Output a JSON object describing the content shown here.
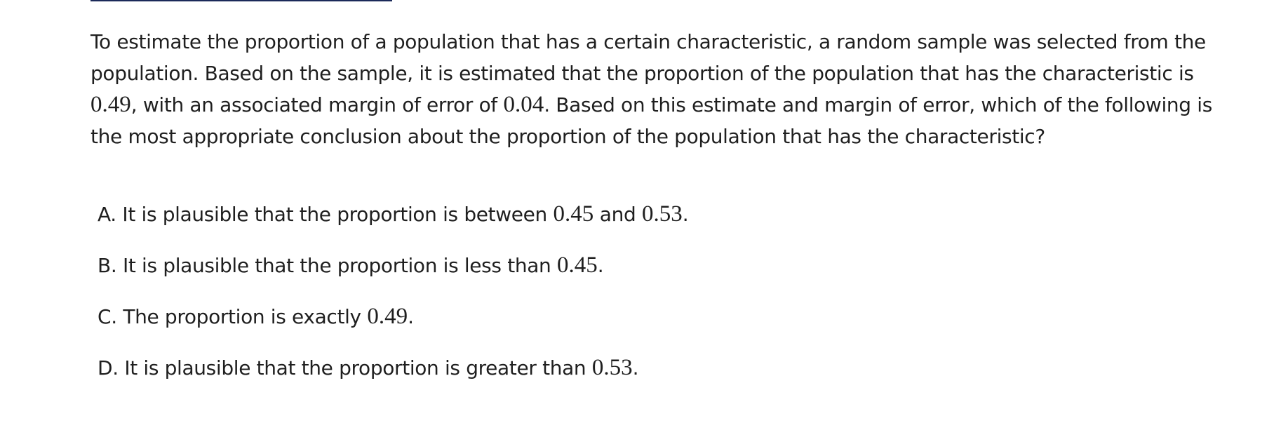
{
  "question": {
    "part1": "To estimate the proportion of a population that has a certain characteristic, a random sample was selected from the population. Based on the sample, it is estimated that the proportion of the population that has the characteristic is ",
    "estimate": "0.49",
    "part2": ", with an associated margin of error of ",
    "margin": "0.04",
    "part3": ". Based on this estimate and margin of error, which of the following is the most appropriate conclusion about the proportion of the population that has the characteristic?"
  },
  "choices": [
    {
      "letter": "A.",
      "text_before": " It is plausible that the proportion is between ",
      "math1": "0.45",
      "text_middle": " and ",
      "math2": "0.53",
      "text_after": "."
    },
    {
      "letter": "B.",
      "text_before": " It is plausible that the proportion is less than ",
      "math1": "0.45",
      "text_after": "."
    },
    {
      "letter": "C.",
      "text_before": " The proportion is exactly ",
      "math1": "0.49",
      "text_after": "."
    },
    {
      "letter": "D.",
      "text_before": " It is plausible that the proportion is greater than ",
      "math1": "0.53",
      "text_after": "."
    }
  ]
}
